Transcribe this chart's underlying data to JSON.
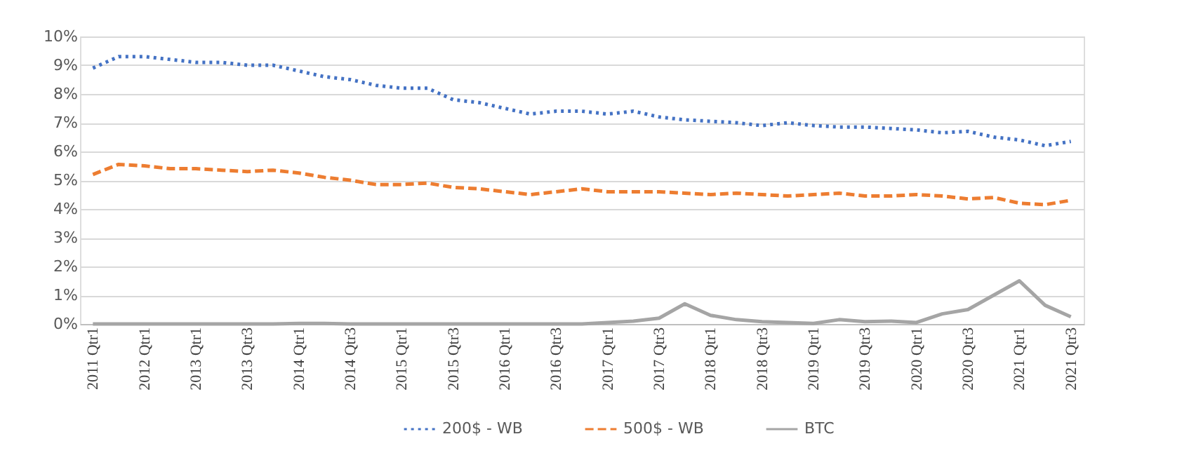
{
  "chart_data": {
    "type": "line",
    "categories": [
      "2011 Qtr1",
      null,
      "2012 Qtr1",
      null,
      "2013 Qtr1",
      null,
      "2013 Qtr3",
      null,
      "2014 Qtr1",
      null,
      "2014 Qtr3",
      null,
      "2015 Qtr1",
      null,
      "2015 Qtr3",
      null,
      "2016 Qtr1",
      null,
      "2016 Qtr3",
      null,
      "2017 Qtr1",
      null,
      "2017 Qtr3",
      null,
      "2018 Qtr1",
      null,
      "2018 Qtr3",
      null,
      "2019 Qtr1",
      null,
      "2019 Qtr3",
      null,
      "2020 Qtr1",
      null,
      "2020 Qtr3",
      null,
      "2021 Qtr1",
      null,
      "2021 Qtr3"
    ],
    "series": [
      {
        "name": "200$ - WB",
        "color": "#4472c4",
        "line_style": "dotted",
        "values": [
          8.9,
          9.3,
          9.3,
          9.2,
          9.1,
          9.1,
          9.0,
          9.0,
          8.8,
          8.6,
          8.5,
          8.3,
          8.2,
          8.2,
          7.8,
          7.7,
          7.5,
          7.3,
          7.4,
          7.4,
          7.3,
          7.4,
          7.2,
          7.1,
          7.05,
          7.0,
          6.9,
          7.0,
          6.9,
          6.85,
          6.85,
          6.8,
          6.75,
          6.65,
          6.7,
          6.5,
          6.4,
          6.2,
          6.35
        ]
      },
      {
        "name": "500$ - WB",
        "color": "#ed7d31",
        "line_style": "dashed",
        "values": [
          5.2,
          5.55,
          5.5,
          5.4,
          5.4,
          5.35,
          5.3,
          5.35,
          5.25,
          5.1,
          5.0,
          4.85,
          4.85,
          4.9,
          4.75,
          4.7,
          4.6,
          4.5,
          4.6,
          4.7,
          4.6,
          4.6,
          4.6,
          4.55,
          4.5,
          4.55,
          4.5,
          4.45,
          4.5,
          4.55,
          4.45,
          4.45,
          4.5,
          4.45,
          4.35,
          4.4,
          4.2,
          4.15,
          4.3
        ]
      },
      {
        "name": "BTC",
        "color": "#a5a5a5",
        "line_style": "solid",
        "values": [
          0,
          0,
          0,
          0,
          0,
          0,
          0,
          0,
          0.02,
          0.02,
          0,
          0,
          0,
          0,
          0,
          0,
          0,
          0,
          0,
          0,
          0.05,
          0.1,
          0.2,
          0.7,
          0.3,
          0.15,
          0.08,
          0.05,
          0.02,
          0.15,
          0.08,
          0.1,
          0.05,
          0.35,
          0.5,
          1.0,
          1.5,
          0.65,
          0.25
        ]
      }
    ],
    "ylim": [
      0,
      10
    ],
    "yticks": [
      {
        "value": 0,
        "label": "0%"
      },
      {
        "value": 1,
        "label": "1%"
      },
      {
        "value": 2,
        "label": "2%"
      },
      {
        "value": 3,
        "label": "3%"
      },
      {
        "value": 4,
        "label": "4%"
      },
      {
        "value": 5,
        "label": "5%"
      },
      {
        "value": 6,
        "label": "6%"
      },
      {
        "value": 7,
        "label": "7%"
      },
      {
        "value": 8,
        "label": "8%"
      },
      {
        "value": 9,
        "label": "9%"
      },
      {
        "value": 10,
        "label": "10%"
      }
    ],
    "grid": "y",
    "legend": "bottom",
    "marker": "none"
  }
}
